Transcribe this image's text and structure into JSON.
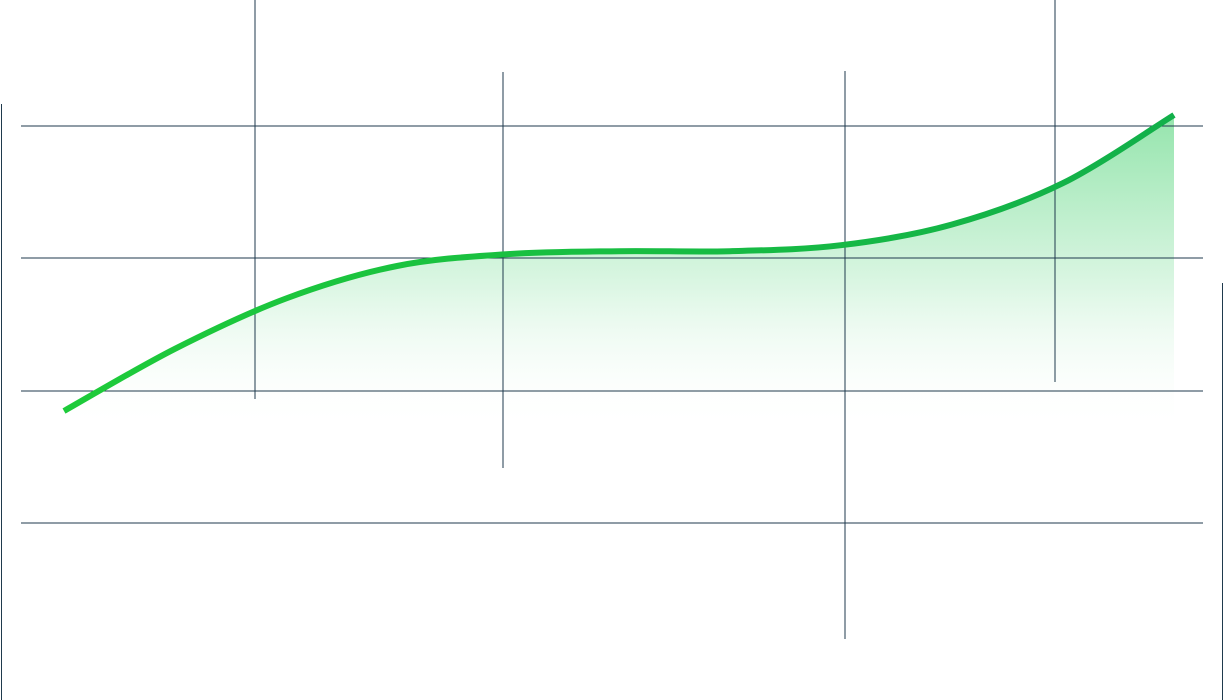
{
  "chart_data": {
    "type": "area",
    "title": "",
    "xlabel": "",
    "ylabel": "",
    "grid": true,
    "legend": "none",
    "x": [
      0,
      1,
      2,
      3,
      4,
      5,
      6,
      7,
      8,
      9,
      10
    ],
    "series": [
      {
        "values": [
          0.0,
          2.1,
          3.8,
          4.9,
          5.3,
          5.4,
          5.4,
          5.6,
          6.3,
          7.7,
          10.0
        ]
      }
    ],
    "xlim": [
      0,
      10
    ],
    "ylim": [
      0,
      10
    ],
    "colors": {
      "line": "#1ecb3a",
      "line_end": "#12b04a",
      "fill_top": "#3fcf6a",
      "fill_bottom": "#ffffff",
      "grid": "#1f3a4d"
    }
  }
}
